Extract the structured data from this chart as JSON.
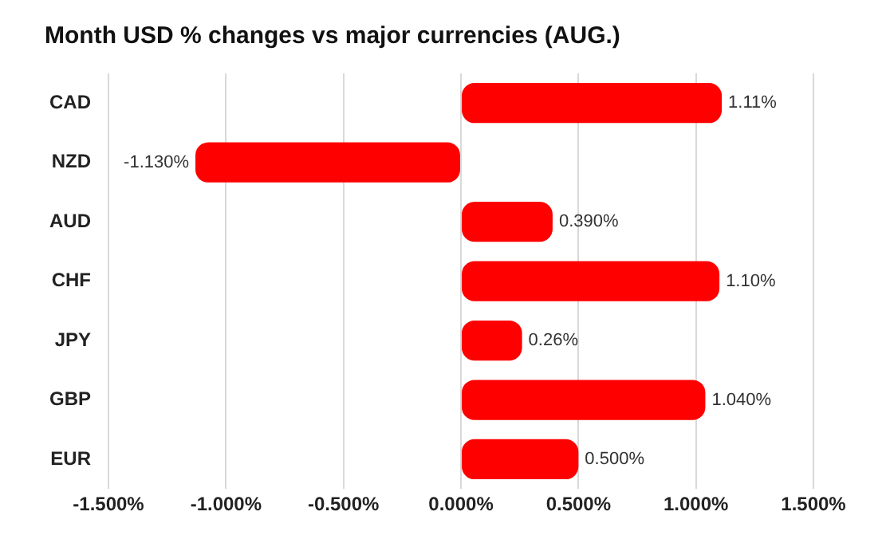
{
  "chart_data": {
    "type": "bar",
    "orientation": "horizontal",
    "title": "Month USD % changes vs major currencies (AUG.)",
    "categories": [
      "CAD",
      "NZD",
      "AUD",
      "CHF",
      "JPY",
      "GBP",
      "EUR"
    ],
    "values": [
      1.11,
      -1.13,
      0.39,
      1.1,
      0.26,
      1.04,
      0.5
    ],
    "value_labels": [
      "1.11%",
      "-1.130%",
      "0.390%",
      "1.10%",
      "0.26%",
      "1.040%",
      "0.500%"
    ],
    "color": "#ff0000",
    "xlim": [
      -1.5,
      1.5
    ],
    "xticks": [
      {
        "value": -1.5,
        "label": "-1.500%"
      },
      {
        "value": -1,
        "label": "-1.000%"
      },
      {
        "value": -0.5,
        "label": "-0.500%"
      },
      {
        "value": 0,
        "label": "0.000%"
      },
      {
        "value": 0.5,
        "label": "0.500%"
      },
      {
        "value": 1,
        "label": "1.000%"
      },
      {
        "value": 1.5,
        "label": "1.500%"
      }
    ],
    "grid": "x",
    "legend": false
  }
}
